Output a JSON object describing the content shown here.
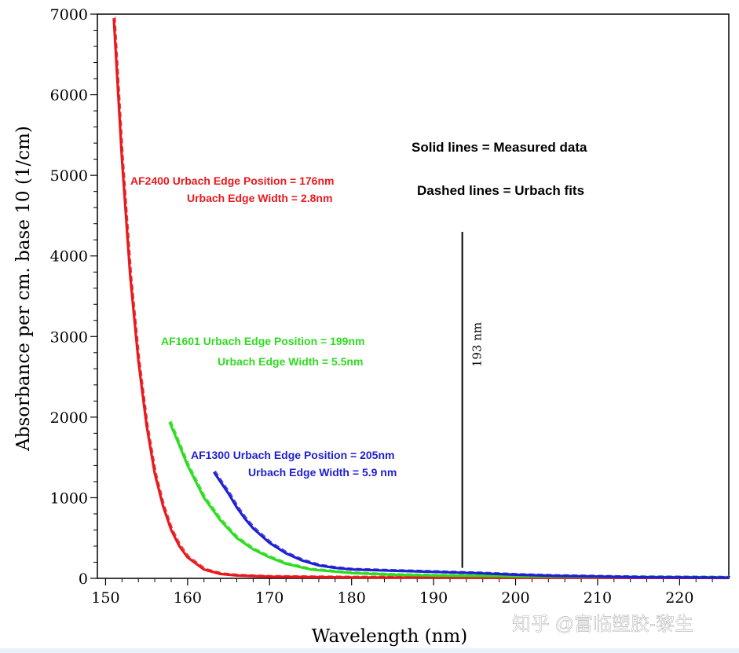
{
  "watermark": "知乎 @富临塑胶-黎生",
  "chart_data": {
    "type": "line",
    "title": "",
    "xlabel": "Wavelength (nm)",
    "ylabel": "Absorbance per cm. base 10 (1/cm)",
    "xlim": [
      149,
      226
    ],
    "ylim": [
      0,
      7000
    ],
    "xticks": [
      150,
      160,
      170,
      180,
      190,
      200,
      210,
      220
    ],
    "yticks": [
      0,
      1000,
      2000,
      3000,
      4000,
      5000,
      6000,
      7000
    ],
    "grid": false,
    "series": [
      {
        "name": "AF2400",
        "color": "#e8191d",
        "points": [
          [
            151,
            6950
          ],
          [
            152,
            5200
          ],
          [
            153,
            3750
          ],
          [
            154,
            2700
          ],
          [
            155,
            1900
          ],
          [
            156,
            1300
          ],
          [
            157,
            900
          ],
          [
            158,
            600
          ],
          [
            159,
            400
          ],
          [
            160,
            260
          ],
          [
            162,
            110
          ],
          [
            164,
            55
          ],
          [
            166,
            35
          ],
          [
            170,
            20
          ],
          [
            180,
            12
          ],
          [
            200,
            8
          ],
          [
            226,
            5
          ]
        ]
      },
      {
        "name": "AF1601",
        "color": "#2ddc1f",
        "points": [
          [
            157.8,
            1940
          ],
          [
            159,
            1650
          ],
          [
            160,
            1400
          ],
          [
            162,
            1000
          ],
          [
            164,
            720
          ],
          [
            166,
            500
          ],
          [
            168,
            360
          ],
          [
            170,
            260
          ],
          [
            172,
            180
          ],
          [
            175,
            110
          ],
          [
            180,
            65
          ],
          [
            185,
            45
          ],
          [
            190,
            35
          ],
          [
            200,
            25
          ],
          [
            210,
            18
          ],
          [
            226,
            12
          ]
        ]
      },
      {
        "name": "AF1300",
        "color": "#1f1fd0",
        "points": [
          [
            163.2,
            1320
          ],
          [
            164,
            1200
          ],
          [
            165,
            1050
          ],
          [
            166,
            880
          ],
          [
            167,
            740
          ],
          [
            168,
            620
          ],
          [
            170,
            440
          ],
          [
            172,
            310
          ],
          [
            174,
            220
          ],
          [
            176,
            160
          ],
          [
            178,
            130
          ],
          [
            180,
            110
          ],
          [
            185,
            95
          ],
          [
            190,
            80
          ],
          [
            195,
            65
          ],
          [
            200,
            45
          ],
          [
            205,
            30
          ],
          [
            210,
            22
          ],
          [
            215,
            14
          ],
          [
            226,
            8
          ]
        ]
      }
    ],
    "annotations": [
      {
        "text": "Solid lines = Measured data",
        "color": "#000000"
      },
      {
        "text": "Dashed lines = Urbach fits",
        "color": "#000000"
      },
      {
        "text": "AF2400 Urbach Edge Position  = 176nm",
        "color": "#e8191d"
      },
      {
        "text": "Urbach Edge Width = 2.8nm",
        "color": "#e8191d"
      },
      {
        "text": "AF1601 Urbach Edge Position  = 199nm",
        "color": "#2ddc1f"
      },
      {
        "text": "Urbach Edge Width = 5.5nm",
        "color": "#2ddc1f"
      },
      {
        "text": "AF1300 Urbach Edge Position  = 205nm",
        "color": "#1f1fd0"
      },
      {
        "text": "Urbach Edge Width = 5.9 nm",
        "color": "#1f1fd0"
      }
    ],
    "marker_line": {
      "x": 193.5,
      "y_top": 4300,
      "label": "193 nm"
    }
  }
}
